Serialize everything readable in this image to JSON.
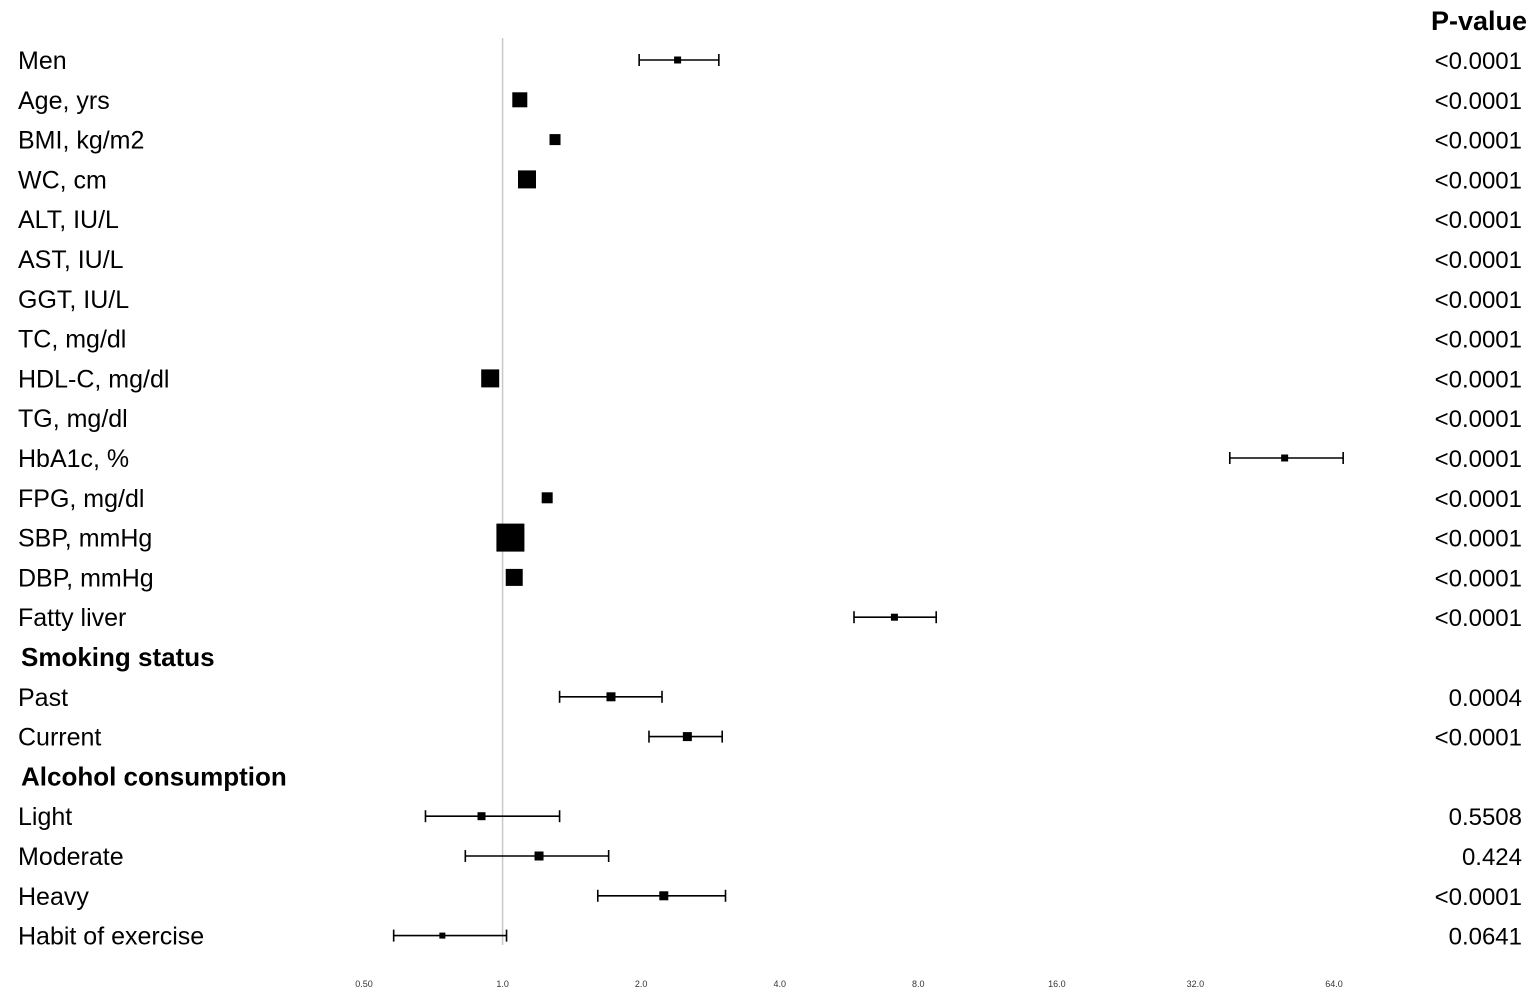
{
  "chart_data": {
    "type": "forest",
    "pvalue_header": "P-value",
    "x_scale": "log2",
    "xlim": [
      0.5,
      64
    ],
    "reference_line": 1.0,
    "x_ticks": [
      {
        "value": 0.5,
        "label": "0.50"
      },
      {
        "value": 1,
        "label": "1.0"
      },
      {
        "value": 2,
        "label": "2.0"
      },
      {
        "value": 4,
        "label": "4.0"
      },
      {
        "value": 8,
        "label": "8.0"
      },
      {
        "value": 16,
        "label": "16.0"
      },
      {
        "value": 32,
        "label": "32.0"
      },
      {
        "value": 64,
        "label": "64.0"
      }
    ],
    "rows": [
      {
        "label": "Men",
        "header": false,
        "or": 2.4,
        "low": 1.98,
        "high": 2.95,
        "pvalue": "<0.0001",
        "box": 7
      },
      {
        "label": "Age, yrs",
        "header": false,
        "or": 1.09,
        "low": 1.09,
        "high": 1.09,
        "pvalue": "<0.0001",
        "box": 15
      },
      {
        "label": "BMI, kg/m2",
        "header": false,
        "or": 1.3,
        "low": 1.3,
        "high": 1.3,
        "pvalue": "<0.0001",
        "box": 11
      },
      {
        "label": "WC, cm",
        "header": false,
        "or": 1.13,
        "low": 1.13,
        "high": 1.13,
        "pvalue": "<0.0001",
        "box": 18
      },
      {
        "label": "ALT, IU/L",
        "header": false,
        "or": null,
        "low": null,
        "high": null,
        "pvalue": "<0.0001",
        "box": 0
      },
      {
        "label": "AST, IU/L",
        "header": false,
        "or": null,
        "low": null,
        "high": null,
        "pvalue": "<0.0001",
        "box": 0
      },
      {
        "label": "GGT, IU/L",
        "header": false,
        "or": null,
        "low": null,
        "high": null,
        "pvalue": "<0.0001",
        "box": 0
      },
      {
        "label": "TC, mg/dl",
        "header": false,
        "or": null,
        "low": null,
        "high": null,
        "pvalue": "<0.0001",
        "box": 0
      },
      {
        "label": "HDL-C, mg/dl",
        "header": false,
        "or": 0.94,
        "low": 0.94,
        "high": 0.94,
        "pvalue": "<0.0001",
        "box": 18
      },
      {
        "label": "TG, mg/dl",
        "header": false,
        "or": null,
        "low": null,
        "high": null,
        "pvalue": "<0.0001",
        "box": 0
      },
      {
        "label": "HbA1c, %",
        "header": false,
        "or": 50,
        "low": 38,
        "high": 67,
        "pvalue": "<0.0001",
        "box": 7
      },
      {
        "label": "FPG, mg/dl",
        "header": false,
        "or": 1.25,
        "low": 1.25,
        "high": 1.25,
        "pvalue": "<0.0001",
        "box": 11
      },
      {
        "label": "SBP, mmHg",
        "header": false,
        "or": 1.04,
        "low": 1.04,
        "high": 1.04,
        "pvalue": "<0.0001",
        "box": 28
      },
      {
        "label": "DBP, mmHg",
        "header": false,
        "or": 1.06,
        "low": 1.06,
        "high": 1.06,
        "pvalue": "<0.0001",
        "box": 17
      },
      {
        "label": "Fatty liver",
        "header": false,
        "or": 7.1,
        "low": 5.8,
        "high": 8.75,
        "pvalue": "<0.0001",
        "box": 7
      },
      {
        "label": "Smoking status",
        "header": true,
        "or": null,
        "low": null,
        "high": null,
        "pvalue": "",
        "box": 0
      },
      {
        "label": "Past",
        "header": false,
        "or": 1.72,
        "low": 1.33,
        "high": 2.22,
        "pvalue": "0.0004",
        "box": 9
      },
      {
        "label": "Current",
        "header": false,
        "or": 2.52,
        "low": 2.08,
        "high": 3.0,
        "pvalue": "<0.0001",
        "box": 9
      },
      {
        "label": "Alcohol consumption",
        "header": true,
        "or": null,
        "low": null,
        "high": null,
        "pvalue": "",
        "box": 0
      },
      {
        "label": "Light",
        "header": false,
        "or": 0.9,
        "low": 0.68,
        "high": 1.33,
        "pvalue": "0.5508",
        "box": 8
      },
      {
        "label": "Moderate",
        "header": false,
        "or": 1.2,
        "low": 0.83,
        "high": 1.7,
        "pvalue": "0.424",
        "box": 9
      },
      {
        "label": "Heavy",
        "header": false,
        "or": 2.24,
        "low": 1.61,
        "high": 3.05,
        "pvalue": "<0.0001",
        "box": 9
      },
      {
        "label": "Habit of exercise",
        "header": false,
        "or": 0.74,
        "low": 0.58,
        "high": 1.02,
        "pvalue": "0.0641",
        "box": 6
      }
    ]
  }
}
